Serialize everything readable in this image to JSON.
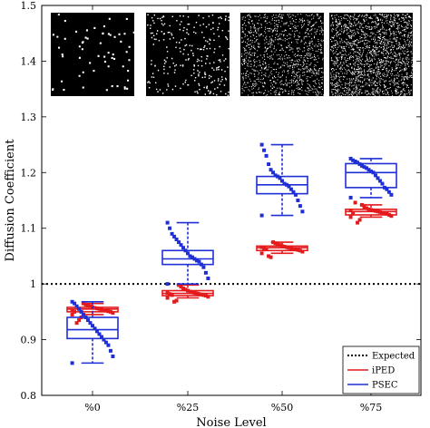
{
  "chart_data": {
    "type": "box",
    "title": "",
    "xlabel": "Noise Level",
    "ylabel": "Diffusion Coefficient",
    "ylim": [
      0.8,
      1.5
    ],
    "yticks": [
      0.8,
      0.9,
      1,
      1.1,
      1.2,
      1.3,
      1.4,
      1.5
    ],
    "ytick_labels": [
      "0.8",
      "0.9",
      "1",
      "1.1",
      "1.2",
      "1.3",
      "1.4",
      "1.5"
    ],
    "categories": [
      "%0",
      "%25",
      "%50",
      "%75"
    ],
    "expected": 1.0,
    "legend": {
      "position": "bottom-right",
      "entries": [
        {
          "label": "Expected",
          "color": "#000000",
          "style": "dotted"
        },
        {
          "label": "iPED",
          "color": "#e41a1c",
          "style": "solid"
        },
        {
          "label": "PSEC",
          "color": "#1f2fd6",
          "style": "solid"
        }
      ]
    },
    "series": [
      {
        "name": "iPED",
        "color": "#e41a1c",
        "boxes": [
          {
            "whisker_low": 0.945,
            "q1": 0.95,
            "median": 0.955,
            "q3": 0.958,
            "whisker_high": 0.965
          },
          {
            "whisker_low": 0.975,
            "q1": 0.979,
            "median": 0.983,
            "q3": 0.988,
            "whisker_high": 0.998
          },
          {
            "whisker_low": 1.055,
            "q1": 1.06,
            "median": 1.065,
            "q3": 1.068,
            "whisker_high": 1.075
          },
          {
            "whisker_low": 1.12,
            "q1": 1.124,
            "median": 1.13,
            "q3": 1.134,
            "whisker_high": 1.142
          }
        ],
        "points": [
          [
            0.945,
            0.948,
            0.95,
            0.951,
            0.952,
            0.953,
            0.954,
            0.955,
            0.956,
            0.957,
            0.958,
            0.96,
            0.962,
            0.963,
            0.965,
            0.94,
            0.935,
            0.93,
            0.95,
            0.952
          ],
          [
            0.975,
            0.977,
            0.979,
            0.98,
            0.981,
            0.982,
            0.983,
            0.984,
            0.985,
            0.986,
            0.988,
            0.99,
            0.992,
            0.995,
            0.998,
            0.97,
            0.968,
            0.98,
            0.982,
            0.984
          ],
          [
            1.055,
            1.058,
            1.06,
            1.061,
            1.062,
            1.063,
            1.064,
            1.065,
            1.066,
            1.067,
            1.068,
            1.07,
            1.072,
            1.073,
            1.075,
            1.048,
            1.05,
            1.062,
            1.064,
            1.066
          ],
          [
            1.12,
            1.122,
            1.124,
            1.126,
            1.127,
            1.128,
            1.129,
            1.13,
            1.131,
            1.132,
            1.133,
            1.134,
            1.136,
            1.138,
            1.142,
            1.115,
            1.11,
            1.146,
            1.128,
            1.132
          ]
        ]
      },
      {
        "name": "PSEC",
        "color": "#1f2fd6",
        "boxes": [
          {
            "whisker_low": 0.858,
            "q1": 0.902,
            "median": 0.918,
            "q3": 0.94,
            "whisker_high": 0.968
          },
          {
            "whisker_low": 1.0,
            "q1": 1.035,
            "median": 1.045,
            "q3": 1.06,
            "whisker_high": 1.11
          },
          {
            "whisker_low": 1.123,
            "q1": 1.162,
            "median": 1.178,
            "q3": 1.193,
            "whisker_high": 1.25
          },
          {
            "whisker_low": 1.155,
            "q1": 1.173,
            "median": 1.2,
            "q3": 1.216,
            "whisker_high": 1.225
          }
        ],
        "points": [
          [
            0.858,
            0.87,
            0.88,
            0.89,
            0.895,
            0.9,
            0.905,
            0.91,
            0.915,
            0.92,
            0.925,
            0.93,
            0.935,
            0.94,
            0.945,
            0.95,
            0.955,
            0.96,
            0.965,
            0.968
          ],
          [
            1.0,
            1.01,
            1.02,
            1.03,
            1.035,
            1.04,
            1.042,
            1.045,
            1.048,
            1.05,
            1.055,
            1.06,
            1.065,
            1.07,
            1.075,
            1.08,
            1.085,
            1.09,
            1.1,
            1.11
          ],
          [
            1.123,
            1.13,
            1.14,
            1.15,
            1.16,
            1.165,
            1.17,
            1.175,
            1.178,
            1.18,
            1.185,
            1.19,
            1.193,
            1.195,
            1.2,
            1.205,
            1.215,
            1.23,
            1.24,
            1.25
          ],
          [
            1.155,
            1.16,
            1.165,
            1.17,
            1.173,
            1.18,
            1.185,
            1.19,
            1.195,
            1.2,
            1.202,
            1.205,
            1.208,
            1.21,
            1.212,
            1.215,
            1.218,
            1.22,
            1.222,
            1.225
          ]
        ]
      }
    ]
  }
}
